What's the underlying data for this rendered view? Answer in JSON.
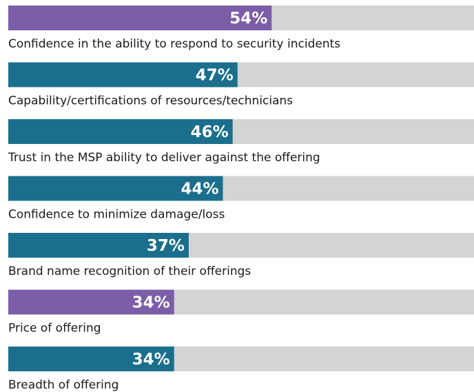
{
  "chart_data": {
    "type": "barh",
    "categories": [
      "Confidence in the ability to respond to security incidents",
      "Capability/certifications of resources/technicians",
      "Trust in the MSP ability to deliver against the offering",
      "Confidence to minimize damage/loss",
      "Brand name recognition of their offerings",
      "Price of offering",
      "Breadth of offering"
    ],
    "values": [
      54,
      47,
      46,
      44,
      37,
      34,
      34
    ],
    "value_labels": [
      "54%",
      "47%",
      "46%",
      "44%",
      "37%",
      "34%",
      "34%"
    ],
    "colors": [
      "#7b5ea7",
      "#1b6f8c",
      "#1b6f8c",
      "#1b6f8c",
      "#1b6f8c",
      "#7b5ea7",
      "#1b6f8c"
    ],
    "track_color": "#d4d4d6",
    "xlim": [
      0,
      100
    ]
  }
}
